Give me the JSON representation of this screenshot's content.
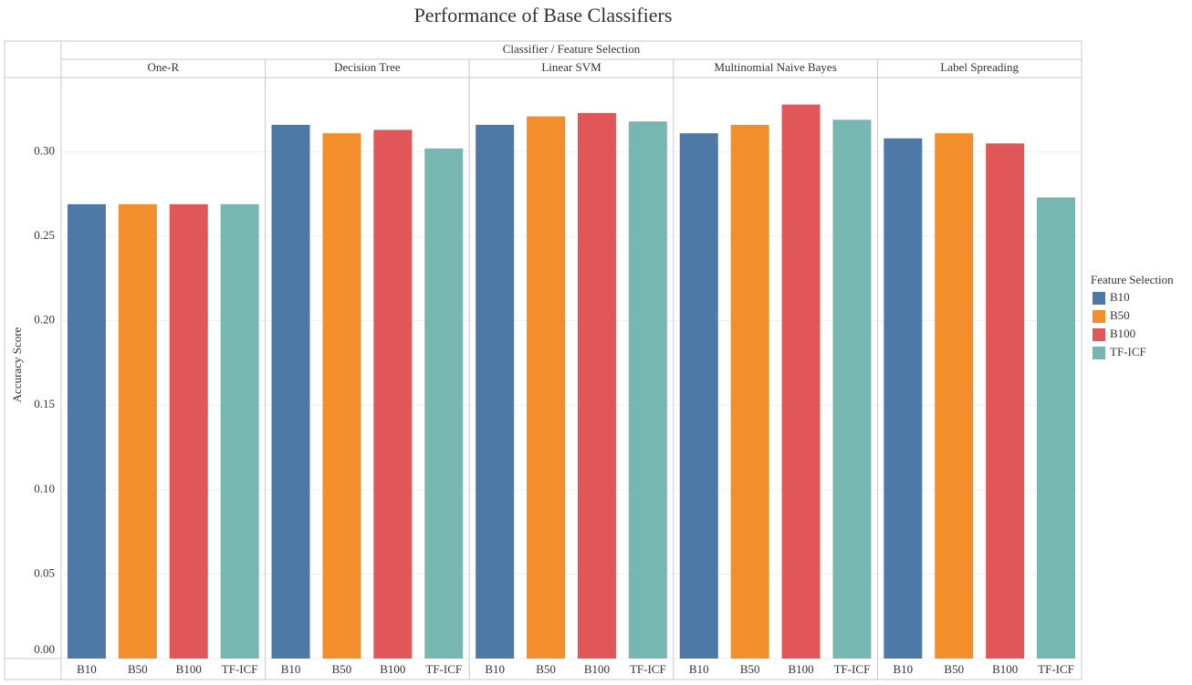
{
  "chart_data": {
    "type": "bar",
    "title": "Performance of Base Classifiers",
    "x_label": "Classifier  /  Feature Selection",
    "y_label": "Accuracy Score",
    "legend_title": "Feature Selection",
    "legend_position": "right",
    "grid": true,
    "categories": [
      "One-R",
      "Decision Tree",
      "Linear SVM",
      "Multinomial Naive Bayes",
      "Label Spreading"
    ],
    "series": [
      {
        "name": "B10",
        "color": "#4e79a7",
        "values": [
          0.269,
          0.316,
          0.316,
          0.311,
          0.308
        ]
      },
      {
        "name": "B50",
        "color": "#f28e2b",
        "values": [
          0.269,
          0.311,
          0.321,
          0.316,
          0.311
        ]
      },
      {
        "name": "B100",
        "color": "#e15759",
        "values": [
          0.269,
          0.313,
          0.323,
          0.328,
          0.305
        ]
      },
      {
        "name": "TF-ICF",
        "color": "#76b7b2",
        "values": [
          0.269,
          0.302,
          0.318,
          0.319,
          0.273
        ]
      }
    ],
    "ylim": [
      0,
      0.344
    ],
    "yticks": [
      {
        "value": 0,
        "label": "0.00"
      },
      {
        "value": 0.05,
        "label": "0.05"
      },
      {
        "value": 0.1,
        "label": "0.10"
      },
      {
        "value": 0.15,
        "label": "0.15"
      },
      {
        "value": 0.2,
        "label": "0.20"
      },
      {
        "value": 0.25,
        "label": "0.25"
      },
      {
        "value": 0.3,
        "label": "0.30"
      }
    ]
  }
}
